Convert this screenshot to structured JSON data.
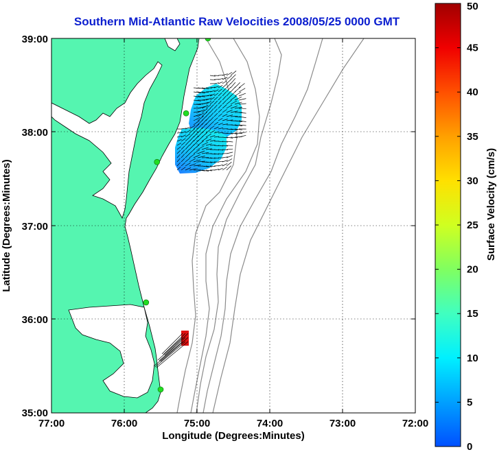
{
  "title": "Southern Mid-Atlantic Raw Velocities 2008/05/25 0000 GMT",
  "map": {
    "xlabel": "Longitude (Degrees:Minutes)",
    "ylabel": "Latitude (Degrees:Minutes)",
    "x_ticks": [
      "77:00",
      "76:00",
      "75:00",
      "74:00",
      "73:00",
      "72:00"
    ],
    "y_ticks": [
      "39:00",
      "38:00",
      "37:00",
      "36:00",
      "35:00"
    ],
    "x_range": [
      -77,
      -72
    ],
    "y_range": [
      35,
      39
    ],
    "land_color": "#55f5b0",
    "water_color": "#ffffff",
    "contour_color": "#8a8a8a",
    "grid": "dotted",
    "station_color": "#22dd22",
    "stations": [
      {
        "lon": -74.85,
        "lat": 39.0
      },
      {
        "lon": -75.15,
        "lat": 38.2
      },
      {
        "lon": -75.55,
        "lat": 37.68
      },
      {
        "lon": -75.7,
        "lat": 36.18
      },
      {
        "lon": -75.5,
        "lat": 35.25
      }
    ]
  },
  "colorbar": {
    "label": "Surface Velocity (cm/s)",
    "ticks": [
      "0",
      "5",
      "10",
      "15",
      "20",
      "25",
      "30",
      "35",
      "40",
      "45",
      "50"
    ],
    "min": 0,
    "max": 50,
    "stops": [
      "#0050ff",
      "#00c8ff",
      "#00ffd0",
      "#40ff70",
      "#a0ff30",
      "#ffff00",
      "#ffc000",
      "#ff8000",
      "#ff3000",
      "#f00000",
      "#a00000"
    ]
  }
}
